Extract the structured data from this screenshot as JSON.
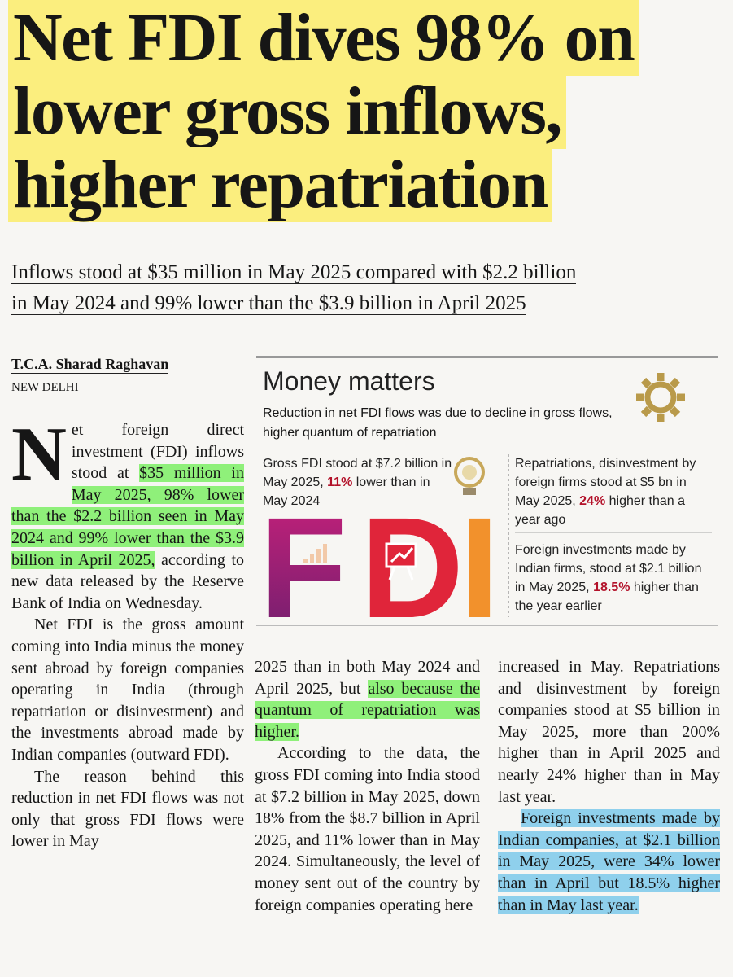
{
  "headline": [
    "Net FDI dives 98% on",
    "lower gross inflows,",
    "higher repatriation"
  ],
  "subheadline": [
    "Inflows stood at $35 million in May 2025 compared with $2.2 billion",
    "in May 2024 and 99% lower than the $3.9 billion in April 2025"
  ],
  "byline": "T.C.A. Sharad Raghavan",
  "dateline": "NEW DELHI",
  "infographic": {
    "title": "Money matters",
    "subtitle": "Reduction in net FDI flows was due to decline in gross flows, higher quantum of repatriation",
    "letters": [
      "F",
      "D",
      "I"
    ],
    "facts": [
      {
        "before": "Gross FDI stood at $7.2 billion in May 2025, ",
        "figure": "11%",
        "after": " lower than in May 2024"
      },
      {
        "before": "Repatriations, disinvestment by foreign firms stood at $5 bn in May 2025, ",
        "figure": "24%",
        "after": " higher than a year ago"
      },
      {
        "before": "Foreign investments made by Indian firms, stood at $2.1 billion in May 2025, ",
        "figure": "18.5%",
        "after": " higher than the year earlier"
      }
    ]
  },
  "article": {
    "drop_cap": "N",
    "columns": [
      [
        [
          {
            "text": "et foreign direct investment (FDI) inflows stood at "
          },
          {
            "text": "$35 million in May 2025, 98% lower than the $2.2 billion seen in May 2024 and 99% lower than the $3.9 billion in April 2025,",
            "highlight": "#8ff07a"
          },
          {
            "text": " according to new data released by the Reserve Bank of India on Wednesday."
          }
        ],
        [
          {
            "text": "Net FDI is the gross amount coming into India minus the money sent abroad by foreign companies operating in India (through repatriation or disinvestment) and the investments abroad made by Indian companies (outward FDI)."
          }
        ],
        [
          {
            "text": "The reason behind this reduction in net FDI flows was not only that gross FDI flows were lower in May"
          }
        ]
      ],
      [
        [
          {
            "text": "2025 than in both May 2024 and April 2025, but "
          },
          {
            "text": "also because the quantum of repatriation was higher.",
            "highlight": "#8ff07a"
          }
        ],
        [
          {
            "text": "According to the data, the gross FDI coming into India stood at $7.2 billion in May 2025, down 18% from the $8.7 billion in April 2025, and 11% lower than in May 2024. Simultaneously, the level of money sent out of the country by foreign companies operating here"
          }
        ]
      ],
      [
        [
          {
            "text": "increased in May. Repatriations and disinvestment by foreign companies stood at $5 billion in May 2025, more than 200% higher than in April 2025 and nearly 24% higher than in May last year."
          }
        ],
        [
          {
            "text": "Foreign investments made by Indian companies, at $2.1 billion in May 2025, were 34% lower than in April but 18.5% higher than in May last year.",
            "highlight": "#8fd0ec"
          }
        ]
      ]
    ]
  }
}
